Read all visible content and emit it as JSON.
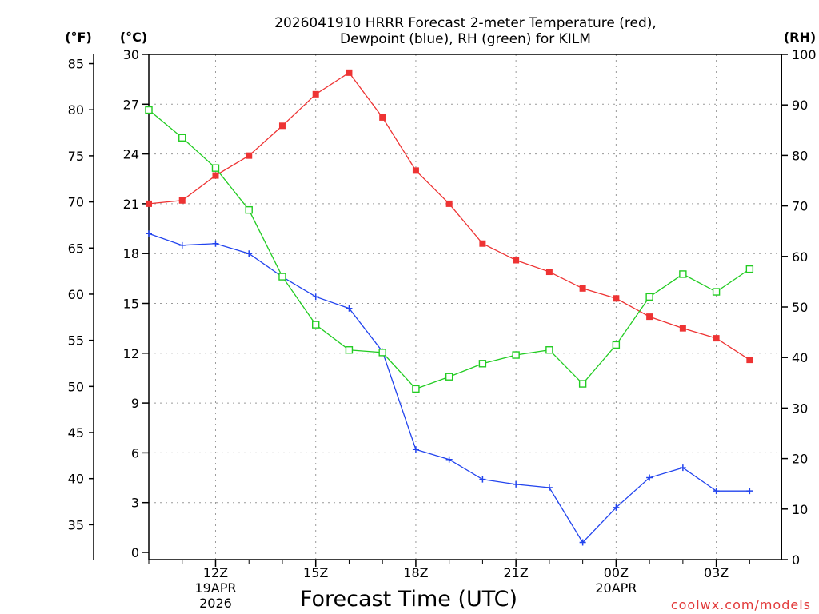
{
  "chart_data": {
    "type": "line",
    "title_line1": "2026041910 HRRR Forecast 2-meter Temperature (red),",
    "title_line2": "Dewpoint (blue), RH (green) for KILM",
    "xlabel": "Forecast Time (UTC)",
    "credit": "coolwx.com/models",
    "units": {
      "fahrenheit": "(°F)",
      "celsius": "(°C)",
      "rh": "(RH)"
    },
    "x_hours": [
      10,
      11,
      12,
      13,
      14,
      15,
      16,
      17,
      18,
      19,
      20,
      21,
      22,
      23,
      24,
      25,
      26,
      27,
      28
    ],
    "x_ticks": [
      {
        "hour": 12,
        "label": "12Z",
        "sub1": "19APR",
        "sub2": "2026"
      },
      {
        "hour": 15,
        "label": "15Z"
      },
      {
        "hour": 18,
        "label": "18Z"
      },
      {
        "hour": 21,
        "label": "21Z"
      },
      {
        "hour": 24,
        "label": "00Z",
        "sub1": "20APR"
      },
      {
        "hour": 27,
        "label": "03Z"
      }
    ],
    "celsius_axis": {
      "range": [
        0,
        30
      ],
      "ticks": [
        0,
        3,
        6,
        9,
        12,
        15,
        18,
        21,
        24,
        27,
        30
      ]
    },
    "fahrenheit_axis": {
      "range": [
        32,
        86
      ],
      "ticks": [
        35,
        40,
        45,
        50,
        55,
        60,
        65,
        70,
        75,
        80,
        85
      ]
    },
    "rh_axis": {
      "range": [
        0,
        100
      ],
      "ticks": [
        0,
        10,
        20,
        30,
        40,
        50,
        60,
        70,
        80,
        90,
        100
      ]
    },
    "series": [
      {
        "name": "2-meter Temperature",
        "color": "#ee3333",
        "marker": "filled-square",
        "axis": "celsius",
        "values": [
          21.0,
          21.2,
          22.7,
          23.9,
          25.7,
          27.6,
          28.9,
          26.2,
          23.0,
          21.0,
          18.6,
          17.6,
          16.9,
          15.9,
          15.3,
          14.2,
          13.5,
          12.9,
          11.6
        ]
      },
      {
        "name": "Dewpoint",
        "color": "#2244ee",
        "marker": "plus",
        "axis": "celsius",
        "values": [
          19.2,
          18.5,
          18.6,
          18.0,
          16.6,
          15.4,
          14.7,
          12.1,
          6.2,
          5.6,
          4.4,
          4.1,
          3.9,
          0.6,
          2.7,
          4.5,
          5.1,
          3.7,
          3.7
        ]
      },
      {
        "name": "RH",
        "color": "#22cc22",
        "marker": "open-square",
        "axis": "rh",
        "values": [
          89.0,
          83.5,
          77.5,
          69.2,
          56.0,
          46.5,
          41.5,
          41.0,
          33.8,
          36.2,
          38.8,
          40.5,
          41.5,
          34.8,
          42.5,
          52.0,
          56.5,
          53.0,
          57.5
        ]
      }
    ]
  }
}
